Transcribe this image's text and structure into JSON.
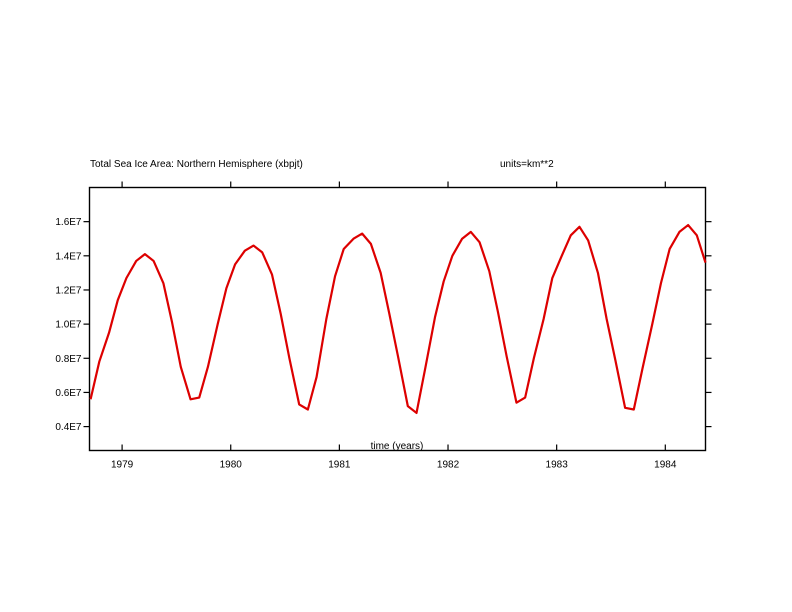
{
  "chart_data": {
    "type": "line",
    "title": "Total Sea Ice Area: Northern Hemisphere (xbpjt)",
    "units_label": "units=km**2",
    "xlabel": "time (years)",
    "ylabel": "",
    "xlim": [
      1978.7,
      1984.37
    ],
    "ylim": [
      2600000,
      18000000
    ],
    "x_ticks": [
      1979,
      1980,
      1981,
      1982,
      1983,
      1984
    ],
    "x_tick_labels": [
      "1979",
      "1980",
      "1981",
      "1982",
      "1983",
      "1984"
    ],
    "y_ticks": [
      4000000,
      6000000,
      8000000,
      10000000,
      12000000,
      14000000,
      16000000
    ],
    "y_tick_labels": [
      "0.4E7",
      "0.6E7",
      "0.8E7",
      "1.0E7",
      "1.2E7",
      "1.4E7",
      "1.6E7"
    ],
    "grid": false,
    "line_color": "#dd0000",
    "x": [
      1978.71,
      1978.79,
      1978.88,
      1978.96,
      1979.04,
      1979.13,
      1979.21,
      1979.29,
      1979.38,
      1979.46,
      1979.54,
      1979.63,
      1979.71,
      1979.79,
      1979.88,
      1979.96,
      1980.04,
      1980.13,
      1980.21,
      1980.29,
      1980.38,
      1980.46,
      1980.54,
      1980.63,
      1980.71,
      1980.79,
      1980.88,
      1980.96,
      1981.04,
      1981.13,
      1981.21,
      1981.29,
      1981.38,
      1981.46,
      1981.54,
      1981.63,
      1981.71,
      1981.79,
      1981.88,
      1981.96,
      1982.04,
      1982.13,
      1982.21,
      1982.29,
      1982.38,
      1982.46,
      1982.54,
      1982.63,
      1982.71,
      1982.79,
      1982.88,
      1982.96,
      1983.04,
      1983.13,
      1983.21,
      1983.29,
      1983.38,
      1983.46,
      1983.54,
      1983.63,
      1983.71,
      1983.79,
      1983.88,
      1983.96,
      1984.04,
      1984.13,
      1984.21,
      1984.29,
      1984.37
    ],
    "series": [
      {
        "values": [
          5600000,
          7800000,
          9500000,
          11400000,
          12700000,
          13700000,
          14100000,
          13700000,
          12400000,
          10100000,
          7500000,
          5600000,
          5700000,
          7500000,
          10000000,
          12100000,
          13500000,
          14300000,
          14600000,
          14200000,
          12900000,
          10600000,
          8000000,
          5300000,
          5000000,
          6900000,
          10300000,
          12800000,
          14400000,
          15000000,
          15300000,
          14700000,
          13000000,
          10600000,
          8100000,
          5200000,
          4800000,
          7400000,
          10400000,
          12500000,
          14000000,
          15000000,
          15400000,
          14800000,
          13100000,
          10700000,
          8100000,
          5400000,
          5700000,
          8000000,
          10300000,
          12700000,
          13900000,
          15200000,
          15700000,
          14900000,
          13000000,
          10300000,
          7900000,
          5100000,
          5000000,
          7400000,
          10000000,
          12400000,
          14400000,
          15400000,
          15800000,
          15200000,
          13600000
        ]
      }
    ]
  }
}
